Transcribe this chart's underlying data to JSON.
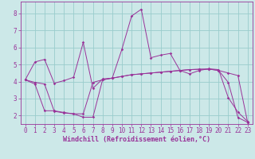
{
  "background_color": "#cce8e8",
  "line_color": "#993399",
  "grid_color": "#99cccc",
  "xlabel": "Windchill (Refroidissement éolien,°C)",
  "xlabel_fontsize": 6,
  "tick_fontsize": 5.5,
  "xlim": [
    -0.5,
    23.5
  ],
  "ylim": [
    1.5,
    8.7
  ],
  "yticks": [
    2,
    3,
    4,
    5,
    6,
    7,
    8
  ],
  "xticks": [
    0,
    1,
    2,
    3,
    4,
    5,
    6,
    7,
    8,
    9,
    10,
    11,
    12,
    13,
    14,
    15,
    16,
    17,
    18,
    19,
    20,
    21,
    22,
    23
  ],
  "line1_x": [
    0,
    1,
    2,
    3,
    4,
    5,
    6,
    7,
    8,
    9,
    10,
    11,
    12,
    13,
    14,
    15,
    16,
    17,
    18,
    19,
    20,
    21,
    22,
    23
  ],
  "line1_y": [
    4.1,
    5.15,
    5.3,
    3.9,
    4.05,
    4.25,
    6.3,
    3.6,
    4.15,
    4.2,
    5.9,
    7.85,
    8.25,
    5.4,
    5.55,
    5.65,
    4.65,
    4.45,
    4.65,
    4.75,
    4.7,
    3.05,
    2.2,
    1.65
  ],
  "line2_x": [
    0,
    1,
    2,
    3,
    4,
    5,
    6,
    7,
    8,
    9,
    10,
    11,
    12,
    13,
    14,
    15,
    16,
    17,
    18,
    19,
    20,
    21,
    22,
    23
  ],
  "line2_y": [
    4.1,
    3.95,
    3.85,
    2.25,
    2.15,
    2.1,
    1.9,
    1.9,
    4.1,
    4.2,
    4.3,
    4.4,
    4.45,
    4.5,
    4.55,
    4.6,
    4.65,
    4.7,
    4.72,
    4.73,
    4.65,
    4.5,
    4.35,
    1.6
  ],
  "line3_x": [
    0,
    1,
    2,
    3,
    4,
    5,
    6,
    7,
    8,
    9,
    10,
    11,
    12,
    13,
    14,
    15,
    16,
    17,
    18,
    19,
    20,
    21,
    22,
    23
  ],
  "line3_y": [
    4.1,
    3.85,
    2.28,
    2.28,
    2.18,
    2.1,
    2.1,
    3.95,
    4.1,
    4.2,
    4.3,
    4.4,
    4.45,
    4.5,
    4.55,
    4.6,
    4.65,
    4.7,
    4.72,
    4.73,
    4.65,
    3.95,
    1.88,
    1.6
  ]
}
